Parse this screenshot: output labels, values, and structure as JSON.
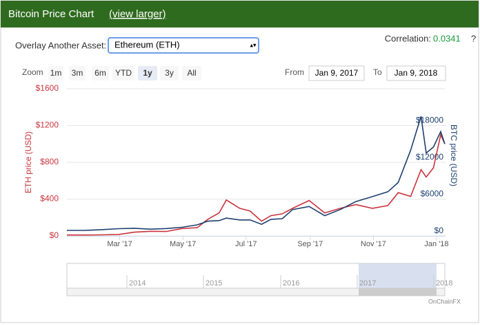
{
  "ui": {
    "title": "Bitcoin Price Chart",
    "link": "(view larger)",
    "overlay_label": "Overlay Another Asset:",
    "overlay_value": "Ethereum (ETH)",
    "correlation_label": "Correlation:",
    "correlation_value": "0.0341",
    "help": "?",
    "zoom_label": "Zoom",
    "zoom_buttons": [
      "1m",
      "3m",
      "6m",
      "YTD",
      "1y",
      "3y",
      "All"
    ],
    "from_label": "From",
    "from_value": "Jan 9, 2017",
    "to_label": "To",
    "to_value": "Jan 9, 2018",
    "navigator_years": [
      "2014",
      "2015",
      "2016",
      "2017",
      "2018"
    ],
    "credit": "OnChainFX"
  },
  "chart_data": {
    "type": "line",
    "x": [
      "2017-01-09",
      "2017-01-25",
      "2017-02-10",
      "2017-02-28",
      "2017-03-15",
      "2017-03-31",
      "2017-04-15",
      "2017-04-30",
      "2017-05-15",
      "2017-05-25",
      "2017-06-05",
      "2017-06-12",
      "2017-06-25",
      "2017-07-05",
      "2017-07-16",
      "2017-07-25",
      "2017-08-05",
      "2017-08-15",
      "2017-08-31",
      "2017-09-15",
      "2017-09-30",
      "2017-10-15",
      "2017-10-31",
      "2017-11-15",
      "2017-11-25",
      "2017-12-07",
      "2017-12-17",
      "2017-12-22",
      "2017-12-29",
      "2018-01-05",
      "2018-01-09"
    ],
    "xlim": [
      "2017-01-09",
      "2018-01-09"
    ],
    "xticks": [
      {
        "value": "2017-03-01",
        "label": "Mar '17"
      },
      {
        "value": "2017-05-01",
        "label": "May '17"
      },
      {
        "value": "2017-07-01",
        "label": "Jul '17"
      },
      {
        "value": "2017-09-01",
        "label": "Sep '17"
      },
      {
        "value": "2017-11-01",
        "label": "Nov '17"
      },
      {
        "value": "2018-01-01",
        "label": "Jan '18"
      }
    ],
    "ylabel": "ETH price (USD)",
    "y2label": "BTC price (USD)",
    "ylim": [
      0,
      1600
    ],
    "yticks": [
      {
        "value": 0,
        "label": "$0"
      },
      {
        "value": 400,
        "label": "$400"
      },
      {
        "value": 800,
        "label": "$800"
      },
      {
        "value": 1200,
        "label": "$1200"
      },
      {
        "value": 1600,
        "label": "$1600"
      }
    ],
    "y2lim": [
      0,
      24000
    ],
    "y2ticks": [
      {
        "value": 0,
        "label": "$0"
      },
      {
        "value": 6000,
        "label": "$6000"
      },
      {
        "value": 12000,
        "label": "$12000"
      },
      {
        "value": 18000,
        "label": "$18000"
      }
    ],
    "grid": true,
    "series": [
      {
        "name": "ETH",
        "color": "#c9333b",
        "values": [
          10,
          10,
          11,
          16,
          40,
          50,
          48,
          80,
          90,
          180,
          250,
          390,
          300,
          270,
          160,
          220,
          240,
          300,
          385,
          250,
          300,
          340,
          300,
          330,
          470,
          430,
          720,
          640,
          740,
          1100,
          1000
        ]
      },
      {
        "name": "BTC",
        "color": "#1c3f6e",
        "axis": "y2",
        "values": [
          900,
          900,
          1000,
          1180,
          1250,
          1100,
          1200,
          1400,
          1800,
          2400,
          2500,
          2900,
          2600,
          2600,
          1900,
          2700,
          2800,
          4300,
          4800,
          3300,
          4300,
          5600,
          6400,
          7200,
          8700,
          14000,
          19500,
          13500,
          14500,
          17000,
          15000
        ]
      }
    ]
  }
}
